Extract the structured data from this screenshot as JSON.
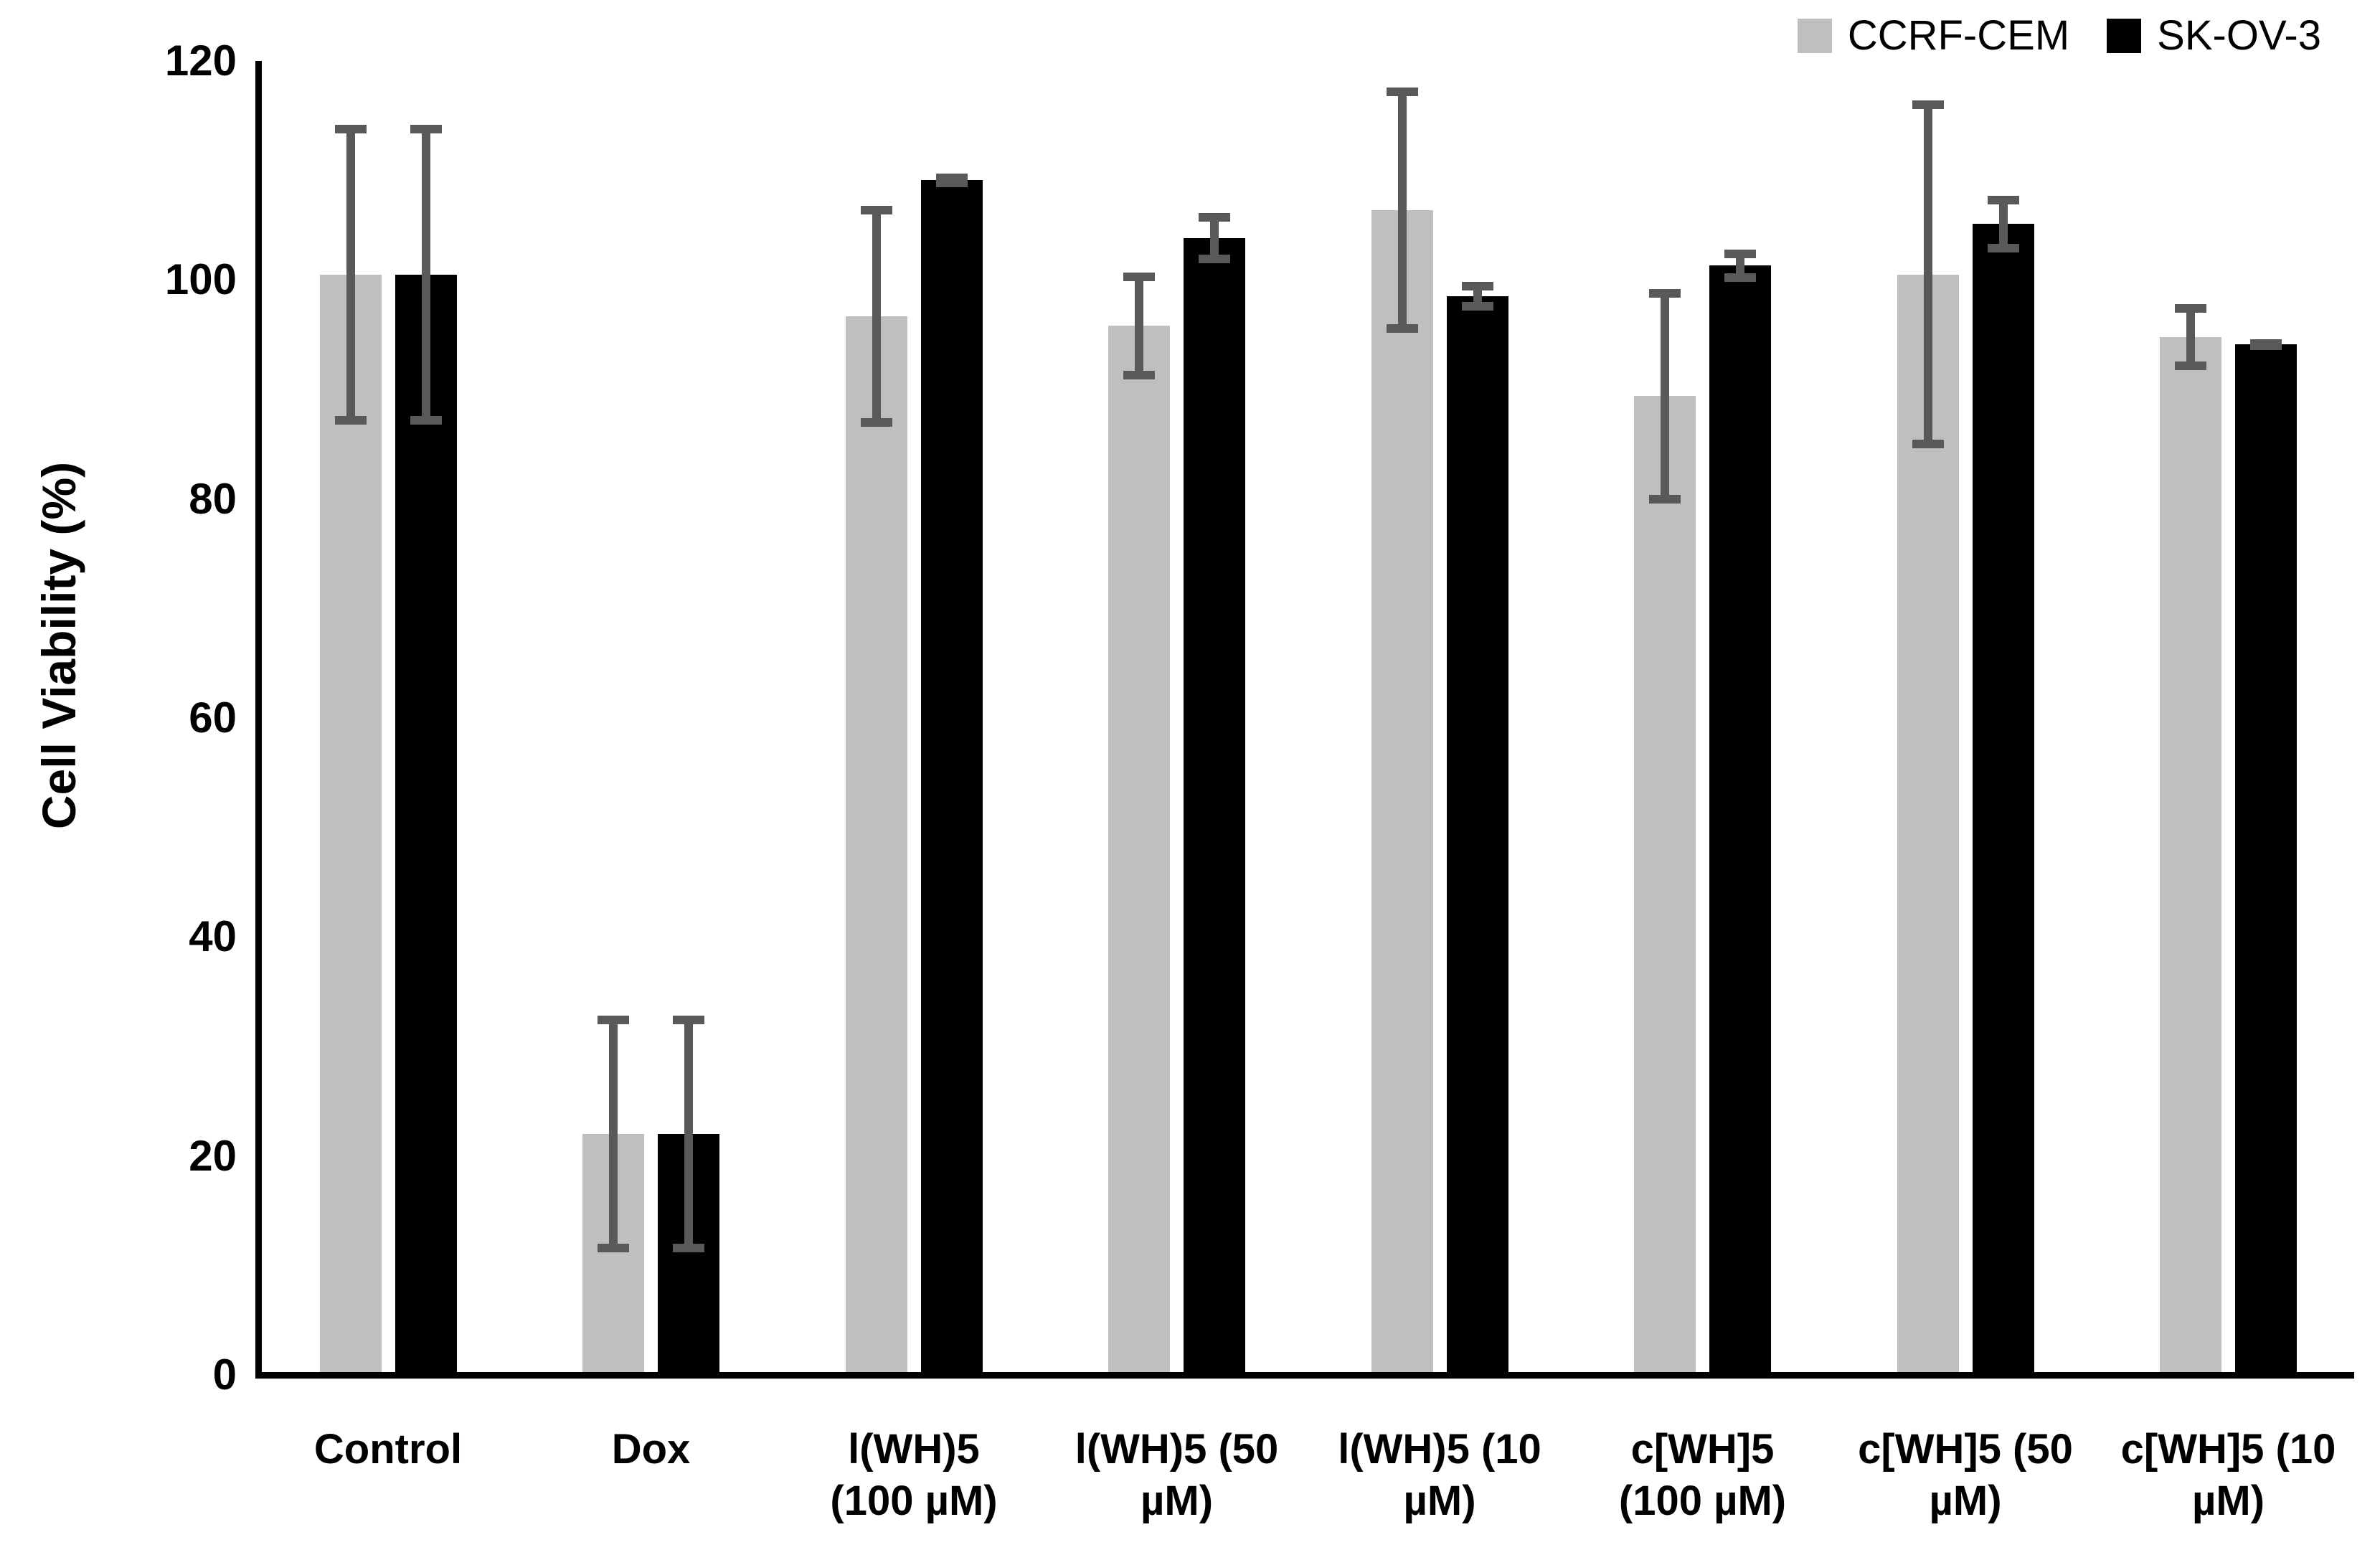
{
  "figure": {
    "background": "#ffffff",
    "accent_black": "#000000",
    "accent_gray": "#bfbfbf",
    "error_bar_color": "#595959"
  },
  "legend": {
    "position": "top-right",
    "items": [
      {
        "label": "CCRF-CEM",
        "color": "#bfbfbf"
      },
      {
        "label": "SK-OV-3",
        "color": "#000000"
      }
    ]
  },
  "chart_data": {
    "type": "bar",
    "title": "",
    "xlabel": "",
    "ylabel": "Cell Viability (%)",
    "ylim": [
      0,
      120
    ],
    "yticks": [
      "0",
      "20",
      "40",
      "60",
      "80",
      "100",
      "120"
    ],
    "grid": false,
    "legend_position": "top-right",
    "error_bars": true,
    "categories": [
      "Control",
      "Dox",
      "l(WH)5 (100 µM)",
      "l(WH)5 (50 µM)",
      "l(WH)5 (10 µM)",
      "c[WH]5 (100 µM)",
      "c[WH]5 (50 µM)",
      "c[WH]5 (10 µM)"
    ],
    "category_lines": [
      [
        "Control",
        ""
      ],
      [
        "Dox",
        ""
      ],
      [
        "l(WH)5",
        "(100 µM)"
      ],
      [
        "l(WH)5 (50",
        "µM)"
      ],
      [
        "l(WH)5 (10",
        "µM)"
      ],
      [
        "c[WH]5",
        "(100 µM)"
      ],
      [
        "c[WH]5 (50",
        "µM)"
      ],
      [
        "c[WH]5 (10",
        "µM)"
      ]
    ],
    "series": [
      {
        "name": "CCRF-CEM",
        "color": "#bfbfbf",
        "values": [
          100.5,
          22.0,
          96.7,
          95.8,
          106.4,
          89.4,
          100.5,
          94.8
        ],
        "errors": [
          13.7,
          10.8,
          10.1,
          4.9,
          11.2,
          9.8,
          15.9,
          3.0
        ]
      },
      {
        "name": "SK-OV-3",
        "color": "#000000",
        "values": [
          100.5,
          22.0,
          109.1,
          103.8,
          98.5,
          101.3,
          105.1,
          94.1
        ],
        "errors": [
          13.7,
          10.8,
          0.6,
          2.3,
          1.3,
          1.5,
          2.6,
          0.5
        ]
      }
    ],
    "error_bar_color": "#595959"
  }
}
